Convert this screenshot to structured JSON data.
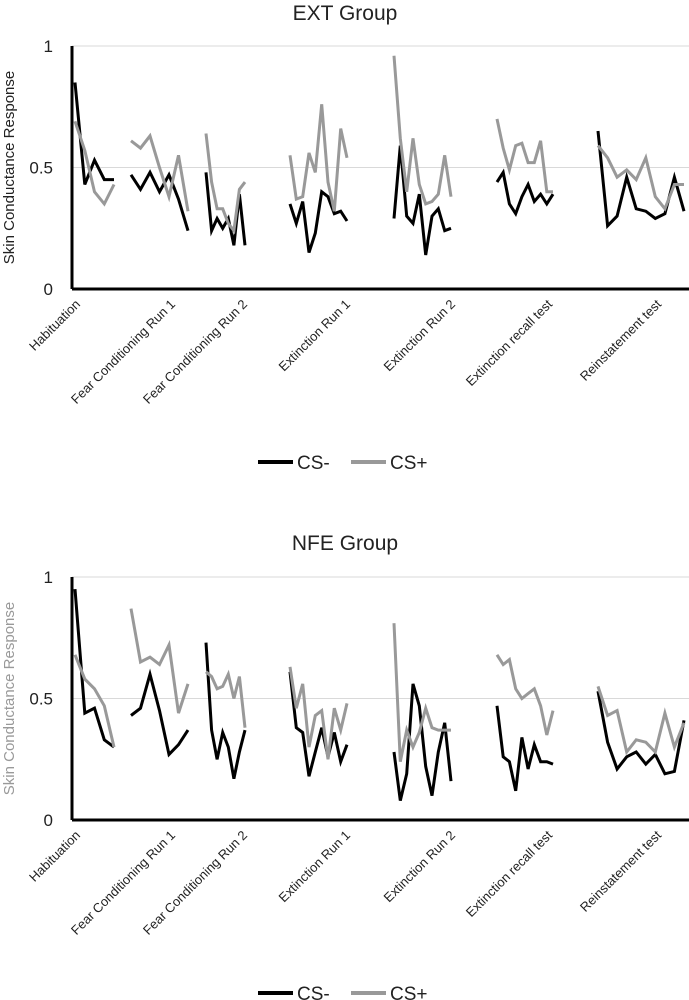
{
  "chart_data": [
    {
      "type": "line",
      "title": "EXT Group",
      "ylabel": "Skin Conductance Response",
      "ylabel_color": "#222222",
      "ylim": [
        0,
        1
      ],
      "yticks": [
        "0",
        "0.5",
        "1"
      ],
      "grid": true,
      "legend_position": "bottom-center",
      "categories": [
        "Habituation",
        "Fear Conditioning Run 1",
        "Fear Conditioning Run 2",
        "Extinction Run 1",
        "Extinction Run 2",
        "Extinction recall test",
        "Reinstatement test"
      ],
      "series": [
        {
          "name": "CS-",
          "color": "#000000",
          "segments": [
            [
              0.85,
              0.43,
              0.53,
              0.45,
              0.45
            ],
            [
              0.47,
              0.41,
              0.48,
              0.4,
              0.47,
              0.37,
              0.24
            ],
            [
              0.48,
              0.24,
              0.29,
              0.25,
              0.29,
              0.18,
              0.39,
              0.18
            ],
            [
              0.35,
              0.27,
              0.36,
              0.15,
              0.23,
              0.4,
              0.38,
              0.31,
              0.32,
              0.28
            ],
            [
              0.29,
              0.59,
              0.3,
              0.27,
              0.39,
              0.14,
              0.3,
              0.33,
              0.24,
              0.25
            ],
            [
              0.44,
              0.48,
              0.35,
              0.31,
              0.38,
              0.43,
              0.36,
              0.39,
              0.35,
              0.39
            ],
            [
              0.65,
              0.26,
              0.3,
              0.46,
              0.33,
              0.32,
              0.29,
              0.31,
              0.46,
              0.32
            ]
          ]
        },
        {
          "name": "CS+",
          "color": "#999999",
          "segments": [
            [
              0.69,
              0.57,
              0.4,
              0.35,
              0.43
            ],
            [
              0.61,
              0.58,
              0.63,
              0.5,
              0.38,
              0.55,
              0.32
            ],
            [
              0.64,
              0.44,
              0.33,
              0.33,
              0.27,
              0.24,
              0.41,
              0.44
            ],
            [
              0.55,
              0.37,
              0.38,
              0.56,
              0.48,
              0.76,
              0.44,
              0.32,
              0.66,
              0.54
            ],
            [
              0.96,
              0.62,
              0.4,
              0.62,
              0.43,
              0.35,
              0.36,
              0.39,
              0.55,
              0.38
            ],
            [
              0.7,
              0.58,
              0.49,
              0.59,
              0.6,
              0.52,
              0.52,
              0.61,
              0.4,
              0.4
            ],
            [
              0.59,
              0.54,
              0.46,
              0.49,
              0.45,
              0.54,
              0.38,
              0.33,
              0.43,
              0.43
            ]
          ]
        }
      ]
    },
    {
      "type": "line",
      "title": "NFE Group",
      "ylabel": "Skin Conductance Response",
      "ylabel_color": "#999999",
      "ylim": [
        0,
        1
      ],
      "yticks": [
        "0",
        "0.5",
        "1"
      ],
      "grid": true,
      "legend_position": "bottom-center",
      "categories": [
        "Habituation",
        "Fear Conditioning Run 1",
        "Fear Conditioning Run 2",
        "Extinction Run 1",
        "Extinction Run 2",
        "Extinction recall test",
        "Reinstatement test"
      ],
      "series": [
        {
          "name": "CS-",
          "color": "#000000",
          "segments": [
            [
              0.95,
              0.44,
              0.46,
              0.33,
              0.3
            ],
            [
              0.43,
              0.46,
              0.6,
              0.45,
              0.27,
              0.31,
              0.37
            ],
            [
              0.73,
              0.37,
              0.25,
              0.36,
              0.3,
              0.17,
              0.28,
              0.37
            ],
            [
              0.61,
              0.38,
              0.36,
              0.18,
              0.28,
              0.38,
              0.26,
              0.36,
              0.24,
              0.31
            ],
            [
              0.28,
              0.08,
              0.19,
              0.56,
              0.47,
              0.22,
              0.1,
              0.28,
              0.4,
              0.16
            ],
            [
              0.47,
              0.26,
              0.24,
              0.12,
              0.34,
              0.21,
              0.31,
              0.24,
              0.24,
              0.23
            ],
            [
              0.53,
              0.32,
              0.21,
              0.26,
              0.28,
              0.23,
              0.27,
              0.19,
              0.2,
              0.41
            ]
          ]
        },
        {
          "name": "CS+",
          "color": "#999999",
          "segments": [
            [
              0.68,
              0.58,
              0.54,
              0.47,
              0.3
            ],
            [
              0.87,
              0.65,
              0.67,
              0.64,
              0.72,
              0.44,
              0.56
            ],
            [
              0.61,
              0.59,
              0.54,
              0.55,
              0.6,
              0.5,
              0.59,
              0.38
            ],
            [
              0.63,
              0.46,
              0.56,
              0.3,
              0.43,
              0.45,
              0.25,
              0.46,
              0.37,
              0.48
            ],
            [
              0.81,
              0.24,
              0.37,
              0.3,
              0.36,
              0.46,
              0.38,
              0.37,
              0.37,
              0.37
            ],
            [
              0.68,
              0.64,
              0.66,
              0.54,
              0.5,
              0.52,
              0.54,
              0.47,
              0.35,
              0.45
            ],
            [
              0.55,
              0.43,
              0.45,
              0.28,
              0.33,
              0.32,
              0.28,
              0.44,
              0.3,
              0.4
            ]
          ]
        }
      ]
    }
  ]
}
